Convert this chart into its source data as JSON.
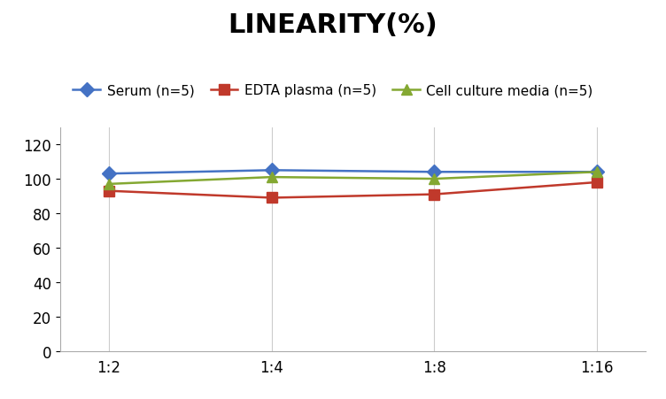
{
  "title": "LINEARITY(%)",
  "x_labels": [
    "1:2",
    "1:4",
    "1:8",
    "1:16"
  ],
  "x_positions": [
    0,
    1,
    2,
    3
  ],
  "series": [
    {
      "label": "Serum (n=5)",
      "values": [
        103,
        105,
        104,
        104
      ],
      "color": "#4472C4",
      "marker": "D",
      "marker_face": "#4472C4",
      "linewidth": 1.8
    },
    {
      "label": "EDTA plasma (n=5)",
      "values": [
        93,
        89,
        91,
        98
      ],
      "color": "#C0392B",
      "marker": "s",
      "marker_face": "#C0392B",
      "linewidth": 1.8
    },
    {
      "label": "Cell culture media (n=5)",
      "values": [
        97,
        101,
        100,
        104
      ],
      "color": "#84A832",
      "marker": "^",
      "marker_face": "#84A832",
      "linewidth": 1.8
    }
  ],
  "ylim": [
    0,
    130
  ],
  "yticks": [
    0,
    20,
    40,
    60,
    80,
    100,
    120
  ],
  "grid_color": "#CCCCCC",
  "background_color": "#FFFFFF",
  "title_fontsize": 22,
  "legend_fontsize": 11,
  "tick_fontsize": 12,
  "marker_size": 8
}
